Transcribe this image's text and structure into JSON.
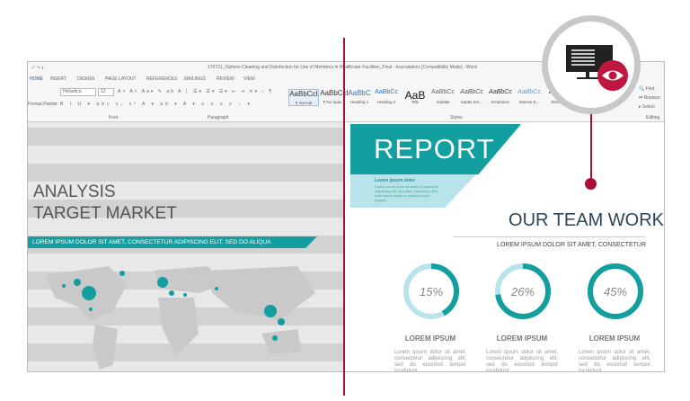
{
  "window": {
    "title": "170721_Options Cleaning and Disinfection for Use of Members in Healthcare Facilities_Final - trucnatalocx [Compatibility Mode] - Word"
  },
  "ribbon": {
    "tabs": [
      "HOME",
      "INSERT",
      "DESIGN",
      "PAGE LAYOUT",
      "REFERENCES",
      "MAILINGS",
      "REVIEW",
      "VIEW"
    ],
    "font_name": "Helvetica",
    "font_size": "12",
    "format_painter": "Format Painter",
    "groups": [
      "Font",
      "Paragraph",
      "Styles",
      "Editing"
    ],
    "styles": [
      {
        "preview": "AaBbCcI",
        "label": "¶ Normal"
      },
      {
        "preview": "AaBbCcI",
        "label": "¶ No Spac..."
      },
      {
        "preview": "AaBbC",
        "label": "Heading 1"
      },
      {
        "preview": "AaBbCc",
        "label": "Heading 2"
      },
      {
        "preview": "AaB",
        "label": "Title"
      },
      {
        "preview": "AaBbCc",
        "label": "Subtitle"
      },
      {
        "preview": "AaBbCc",
        "label": "Subtle Em..."
      },
      {
        "preview": "AaBbCc",
        "label": "Emphasis"
      },
      {
        "preview": "AaBbCc",
        "label": "Intense E..."
      },
      {
        "preview": "AaBb",
        "label": "Strong"
      }
    ],
    "editing": [
      "Find",
      "Replace",
      "Select"
    ]
  },
  "left_doc": {
    "title1": "ANALYSIS",
    "title2": "TARGET MARKET",
    "banner": "LOREM IPSUM DOLOR SIT AMET, CONSECTETUR ADIPISCING ELIT, SED DO  ALIQUA"
  },
  "right_doc": {
    "report": "REPORT",
    "box_title": "Lorem ipsum dolor",
    "box_text": "Lorem ipsum dolor sit amet, consectetur adipiscing elit, sed diam nonummy nibh euismod tincidunt ut laoreet dolore magna",
    "heading": "OUR TEAM WORK",
    "subheading": "LOREM IPSUM DOLOR SIT AMET, CONSECTETUR",
    "stats": [
      {
        "percent": 15,
        "label": "15%",
        "title": "LOREM IPSUM",
        "text": "Lorem ipsum dolor sit amet, consectetur adipiscing elit, sed do eiusmod tempor incididunt"
      },
      {
        "percent": 26,
        "label": "26%",
        "title": "LOREM IPSUM",
        "text": "Lorem ipsum dolor sit amet, consectetur adipiscing elit, sed do eiusmod tempor incididunt"
      },
      {
        "percent": 45,
        "label": "45%",
        "title": "LOREM IPSUM",
        "text": "Lorem ipsum dolor sit amet, consectetur adipiscing elit, sed do eiusmod tempor incididunt"
      }
    ]
  },
  "colors": {
    "teal": "#139ea0",
    "light_teal": "#b9e3ea",
    "accent": "#a8103a",
    "ring": "#c8c8c8"
  },
  "icons": [
    "monitor-icon",
    "eye-icon"
  ]
}
